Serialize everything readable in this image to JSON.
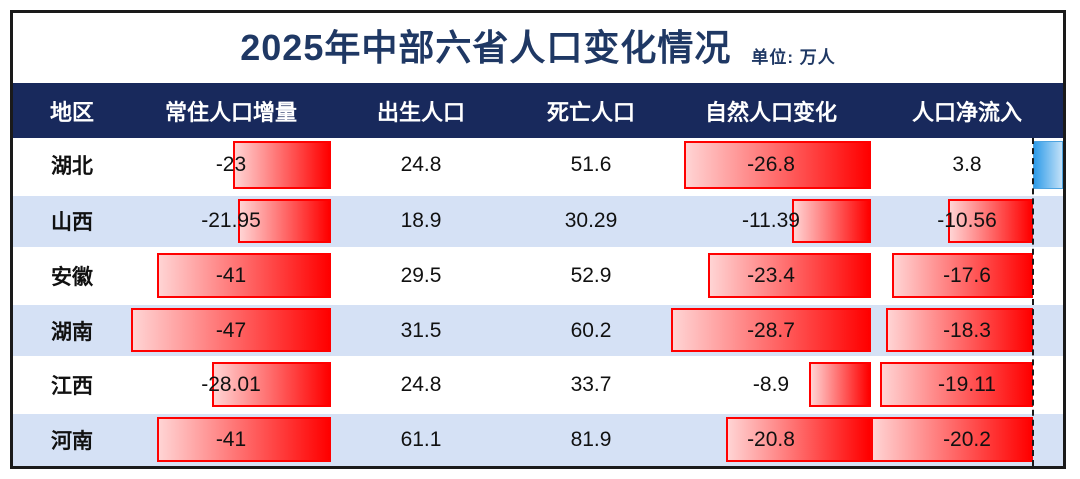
{
  "title": "2025年中部六省人口变化情况",
  "unit_label": "单位: 万人",
  "columns": [
    "地区",
    "常住人口增量",
    "出生人口",
    "死亡人口",
    "自然人口变化",
    "人口净流入"
  ],
  "column_keys": [
    "resident_change",
    "births",
    "deaths",
    "natural_change",
    "net_inflow"
  ],
  "databar_columns": {
    "resident_change": "negative-only",
    "natural_change": "negative-only",
    "net_inflow": "positive-negative"
  },
  "colors": {
    "frame_border": "#1A1A1A",
    "title_text": "#1F3864",
    "header_bg": "#18295C",
    "row_alt_bg": "#D5E1F5",
    "bar_negative_solid": "#FF0000",
    "bar_negative_light": "#FFD4D4",
    "bar_positive_solid": "#2E9BE8",
    "bar_positive_light": "#C2E1F8",
    "bar_positive_border": "#4DA3E0"
  },
  "chart_data": {
    "type": "table",
    "title": "2025年中部六省人口变化情况",
    "unit": "万人",
    "columns": [
      "地区",
      "常住人口增量",
      "出生人口",
      "死亡人口",
      "自然人口变化",
      "人口净流入"
    ],
    "rows": [
      [
        "湖北",
        -23,
        24.8,
        51.6,
        -26.8,
        3.8
      ],
      [
        "山西",
        -21.95,
        18.9,
        30.29,
        -11.39,
        -10.56
      ],
      [
        "安徽",
        -41,
        29.5,
        52.9,
        -23.4,
        -17.6
      ],
      [
        "湖南",
        -47,
        31.5,
        60.2,
        -28.7,
        -18.3
      ],
      [
        "江西",
        -28.01,
        24.8,
        33.7,
        -8.9,
        -19.11
      ],
      [
        "河南",
        -41,
        61.1,
        81.9,
        -20.8,
        -20.2
      ]
    ],
    "annotations": {
      "databar_style": "negative values drawn as red gradient bars extending left from column axis; positive values drawn as blue gradient bars extending right of dashed axis",
      "axis_note": "dashed vertical line marks data-bar zero axis in 人口净流入 column"
    }
  }
}
